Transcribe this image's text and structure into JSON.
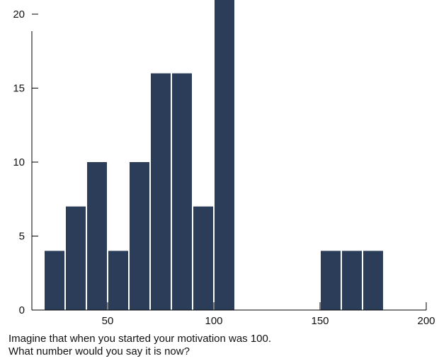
{
  "chart_data": {
    "type": "bar",
    "title": "",
    "xlabel": "",
    "ylabel": "",
    "bar_color": "#2b3d58",
    "xlim": [
      0,
      200
    ],
    "ylim": [
      0,
      22
    ],
    "grid": false,
    "x_ticks": [
      50,
      100,
      150,
      200
    ],
    "y_ticks": [
      0,
      5,
      10,
      15,
      20
    ],
    "bins": [
      {
        "start": 20,
        "end": 30,
        "value": 4
      },
      {
        "start": 30,
        "end": 40,
        "value": 7
      },
      {
        "start": 40,
        "end": 50,
        "value": 10
      },
      {
        "start": 50,
        "end": 60,
        "value": 4
      },
      {
        "start": 60,
        "end": 70,
        "value": 10
      },
      {
        "start": 70,
        "end": 80,
        "value": 16
      },
      {
        "start": 80,
        "end": 90,
        "value": 16
      },
      {
        "start": 90,
        "end": 100,
        "value": 7
      },
      {
        "start": 100,
        "end": 110,
        "value": 22
      },
      {
        "start": 150,
        "end": 160,
        "value": 4
      },
      {
        "start": 160,
        "end": 170,
        "value": 4
      },
      {
        "start": 170,
        "end": 180,
        "value": 4
      }
    ]
  },
  "caption": {
    "line1": "Imagine that when you started your motivation was 100.",
    "line2": "What number would you say it is now?"
  }
}
